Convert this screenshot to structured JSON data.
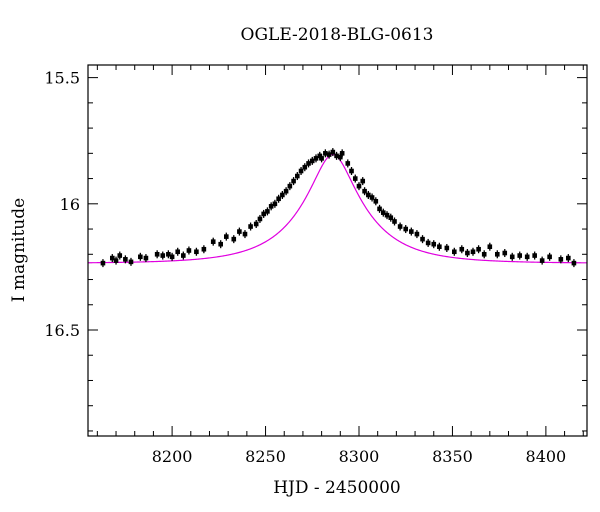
{
  "chart_data": {
    "type": "scatter",
    "title": "OGLE-2018-BLG-0613",
    "xlabel": "HJD - 2450000",
    "ylabel": "I magnitude",
    "xlim": [
      8155,
      8422
    ],
    "ylim": [
      16.92,
      15.45
    ],
    "y_inverted": true,
    "grid": false,
    "xticks": [
      {
        "value": 8200,
        "label": "8200"
      },
      {
        "value": 8250,
        "label": "8250"
      },
      {
        "value": 8300,
        "label": "8300"
      },
      {
        "value": 8350,
        "label": "8350"
      },
      {
        "value": 8400,
        "label": "8400"
      }
    ],
    "yticks": [
      {
        "value": 15.5,
        "label": "15.5"
      },
      {
        "value": 16.0,
        "label": "16"
      },
      {
        "value": 16.5,
        "label": "16.5"
      }
    ],
    "series": [
      {
        "kind": "points",
        "color": "#000000",
        "x": [
          8163,
          8168,
          8170,
          8172,
          8175,
          8178,
          8183,
          8186,
          8192,
          8195,
          8198,
          8200,
          8203,
          8206,
          8209,
          8213,
          8217,
          8222,
          8226,
          8229,
          8233,
          8236,
          8239,
          8242,
          8245,
          8247,
          8249,
          8251,
          8253,
          8255,
          8257,
          8259,
          8261,
          8263,
          8265,
          8267,
          8269,
          8271,
          8273,
          8275,
          8277,
          8279,
          8280,
          8282,
          8284,
          8286,
          8288,
          8290,
          8291,
          8294,
          8296,
          8298,
          8300,
          8302,
          8303,
          8305,
          8307,
          8309,
          8311,
          8313,
          8315,
          8317,
          8319,
          8322,
          8325,
          8328,
          8331,
          8334,
          8337,
          8340,
          8343,
          8347,
          8351,
          8355,
          8358,
          8361,
          8364,
          8367,
          8370,
          8374,
          8378,
          8382,
          8386,
          8390,
          8394,
          8398,
          8402,
          8408,
          8412,
          8415
        ],
        "y": [
          16.235,
          16.215,
          16.225,
          16.205,
          16.22,
          16.23,
          16.21,
          16.215,
          16.2,
          16.205,
          16.2,
          16.21,
          16.19,
          16.205,
          16.185,
          16.19,
          16.18,
          16.15,
          16.16,
          16.13,
          16.14,
          16.11,
          16.12,
          16.09,
          16.08,
          16.06,
          16.04,
          16.03,
          16.01,
          16.0,
          15.98,
          15.965,
          15.95,
          15.93,
          15.91,
          15.89,
          15.87,
          15.855,
          15.84,
          15.83,
          15.82,
          15.81,
          15.82,
          15.8,
          15.805,
          15.795,
          15.81,
          15.815,
          15.8,
          15.84,
          15.87,
          15.9,
          15.93,
          15.91,
          15.95,
          15.965,
          15.975,
          15.99,
          16.02,
          16.035,
          16.045,
          16.055,
          16.07,
          16.09,
          16.1,
          16.11,
          16.12,
          16.14,
          16.155,
          16.16,
          16.17,
          16.175,
          16.19,
          16.18,
          16.195,
          16.19,
          16.18,
          16.2,
          16.17,
          16.2,
          16.195,
          16.21,
          16.205,
          16.21,
          16.205,
          16.225,
          16.21,
          16.22,
          16.215,
          16.235
        ]
      },
      {
        "kind": "model",
        "color": "#e000e0",
        "shape": "microlensing",
        "t0": 8286,
        "tE": 34,
        "baseline": 16.236,
        "peak": 15.805
      }
    ]
  }
}
